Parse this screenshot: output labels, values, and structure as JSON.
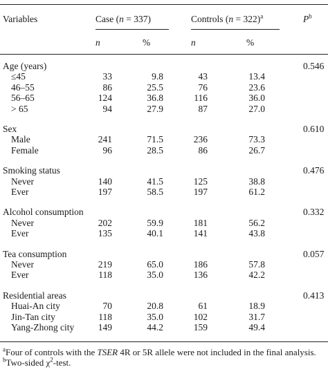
{
  "header": {
    "variables": "Variables",
    "case": "Case (",
    "case_n": "n",
    "case_count": " = 337)",
    "controls": "Controls (",
    "controls_n": "n",
    "controls_count": " = 322)",
    "controls_sup": "a",
    "p": "P",
    "p_sup": "b",
    "sub_n": "n",
    "sub_pct": "%"
  },
  "groups": [
    {
      "label": "Age (years)",
      "p": "0.546",
      "rows": [
        {
          "label": "≤45",
          "case_n": "33",
          "case_pct": "9.8",
          "ctrl_n": "43",
          "ctrl_pct": "13.4"
        },
        {
          "label": "46–55",
          "case_n": "86",
          "case_pct": "25.5",
          "ctrl_n": "76",
          "ctrl_pct": "23.6"
        },
        {
          "label": "56–65",
          "case_n": "124",
          "case_pct": "36.8",
          "ctrl_n": "116",
          "ctrl_pct": "36.0"
        },
        {
          "label": "> 65",
          "case_n": "94",
          "case_pct": "27.9",
          "ctrl_n": "87",
          "ctrl_pct": "27.0"
        }
      ]
    },
    {
      "label": "Sex",
      "p": "0.610",
      "rows": [
        {
          "label": "Male",
          "case_n": "241",
          "case_pct": "71.5",
          "ctrl_n": "236",
          "ctrl_pct": "73.3"
        },
        {
          "label": "Female",
          "case_n": "96",
          "case_pct": "28.5",
          "ctrl_n": "86",
          "ctrl_pct": "26.7"
        }
      ]
    },
    {
      "label": "Smoking status",
      "p": "0.476",
      "rows": [
        {
          "label": "Never",
          "case_n": "140",
          "case_pct": "41.5",
          "ctrl_n": "125",
          "ctrl_pct": "38.8"
        },
        {
          "label": "Ever",
          "case_n": "197",
          "case_pct": "58.5",
          "ctrl_n": "197",
          "ctrl_pct": "61.2"
        }
      ]
    },
    {
      "label": "Alcohol consumption",
      "p": "0.332",
      "rows": [
        {
          "label": "Never",
          "case_n": "202",
          "case_pct": "59.9",
          "ctrl_n": "181",
          "ctrl_pct": "56.2"
        },
        {
          "label": "Ever",
          "case_n": "135",
          "case_pct": "40.1",
          "ctrl_n": "141",
          "ctrl_pct": "43.8"
        }
      ]
    },
    {
      "label": "Tea consumption",
      "p": "0.057",
      "rows": [
        {
          "label": "Never",
          "case_n": "219",
          "case_pct": "65.0",
          "ctrl_n": "186",
          "ctrl_pct": "57.8"
        },
        {
          "label": "Ever",
          "case_n": "118",
          "case_pct": "35.0",
          "ctrl_n": "136",
          "ctrl_pct": "42.2"
        }
      ]
    },
    {
      "label": "Residential areas",
      "p": "0.413",
      "rows": [
        {
          "label": "Huai-An city",
          "case_n": "70",
          "case_pct": "20.8",
          "ctrl_n": "61",
          "ctrl_pct": "18.9"
        },
        {
          "label": "Jin-Tan city",
          "case_n": "118",
          "case_pct": "35.0",
          "ctrl_n": "102",
          "ctrl_pct": "31.7"
        },
        {
          "label": "Yang-Zhong city",
          "case_n": "149",
          "case_pct": "44.2",
          "ctrl_n": "159",
          "ctrl_pct": "49.4"
        }
      ]
    }
  ],
  "footnotes": {
    "a_mark": "a",
    "a_text_1": "Four of controls with the ",
    "a_gene": "TSER",
    "a_text_2": " 4R or 5R allele were not included in the final analysis.",
    "b_mark": "b",
    "b_text_1": "Two-sided ",
    "b_chi": "χ",
    "b_sq": "2",
    "b_text_2": "-test."
  }
}
